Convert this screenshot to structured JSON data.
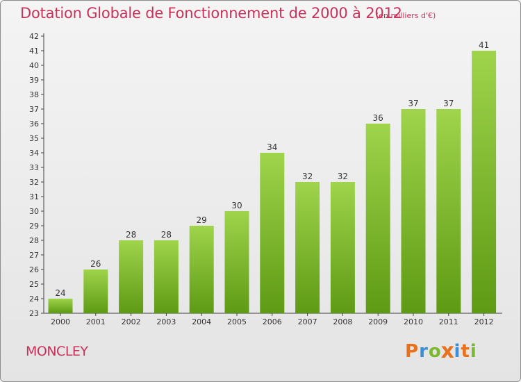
{
  "title": "Dotation Globale de Fonctionnement de 2000 à 2012",
  "subtitle": "(en milliers d'€)",
  "commune": "MONCLEY",
  "brand": {
    "letters": [
      "P",
      "r",
      "o",
      "x",
      "i",
      "t",
      "i"
    ],
    "colors": [
      "#e8721c",
      "#3a8fd6",
      "#7cb832",
      "#e8721c",
      "#3a8fd6",
      "#e8721c",
      "#7cb832"
    ]
  },
  "chart_data": {
    "type": "bar",
    "categories": [
      "2000",
      "2001",
      "2002",
      "2003",
      "2004",
      "2005",
      "2006",
      "2007",
      "2008",
      "2009",
      "2010",
      "2011",
      "2012"
    ],
    "values": [
      24,
      26,
      28,
      28,
      29,
      30,
      34,
      32,
      32,
      36,
      37,
      37,
      41
    ],
    "data_labels": [
      "24",
      "26",
      "28",
      "28",
      "29",
      "30",
      "34",
      "32",
      "32",
      "36",
      "37",
      "37",
      "41"
    ],
    "y_ticks": [
      "23",
      "24",
      "25",
      "26",
      "27",
      "28",
      "29",
      "30",
      "31",
      "32",
      "33",
      "34",
      "35",
      "36",
      "37",
      "38",
      "39",
      "40",
      "41",
      "42"
    ],
    "ylim": [
      23,
      42
    ],
    "grid": false,
    "bar_color_top": "#9fd44c",
    "bar_color_bottom": "#5e9a14"
  }
}
